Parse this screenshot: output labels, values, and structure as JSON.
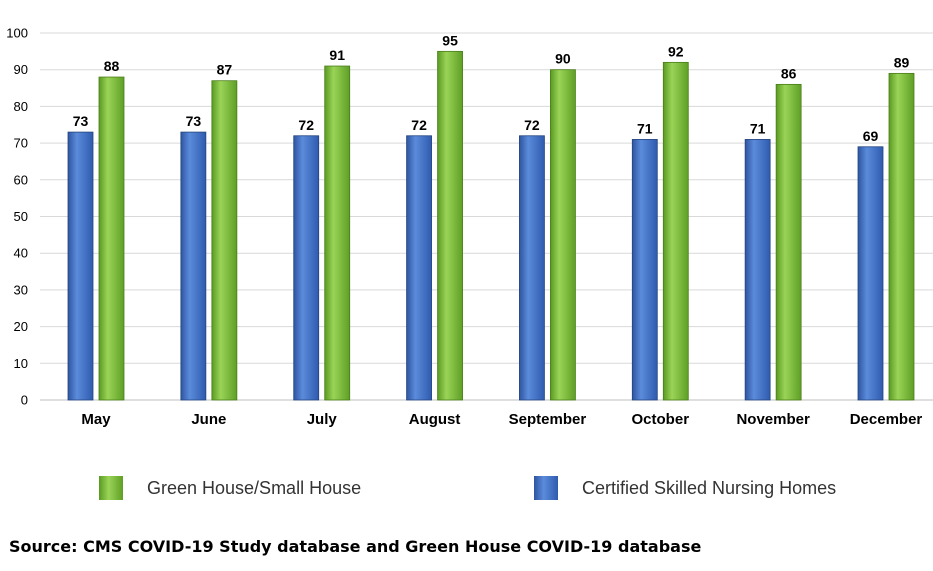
{
  "chart_data": {
    "type": "bar",
    "categories": [
      "May",
      "June",
      "July",
      "August",
      "September",
      "October",
      "November",
      "December"
    ],
    "series": [
      {
        "name": "Certified Skilled Nursing Homes",
        "color": "#4472C4",
        "values": [
          73,
          73,
          72,
          72,
          72,
          71,
          71,
          69
        ]
      },
      {
        "name": "Green House/Small House",
        "color": "#7AB83A",
        "values": [
          88,
          87,
          91,
          95,
          90,
          92,
          86,
          89
        ]
      }
    ],
    "ylim": [
      0,
      100
    ],
    "yticks": [
      0,
      10,
      20,
      30,
      40,
      50,
      60,
      70,
      80,
      90,
      100
    ],
    "grid": true,
    "legend_placement": "bottom",
    "source": "Source: CMS COVID-19 Study database and Green House COVID-19 database"
  }
}
